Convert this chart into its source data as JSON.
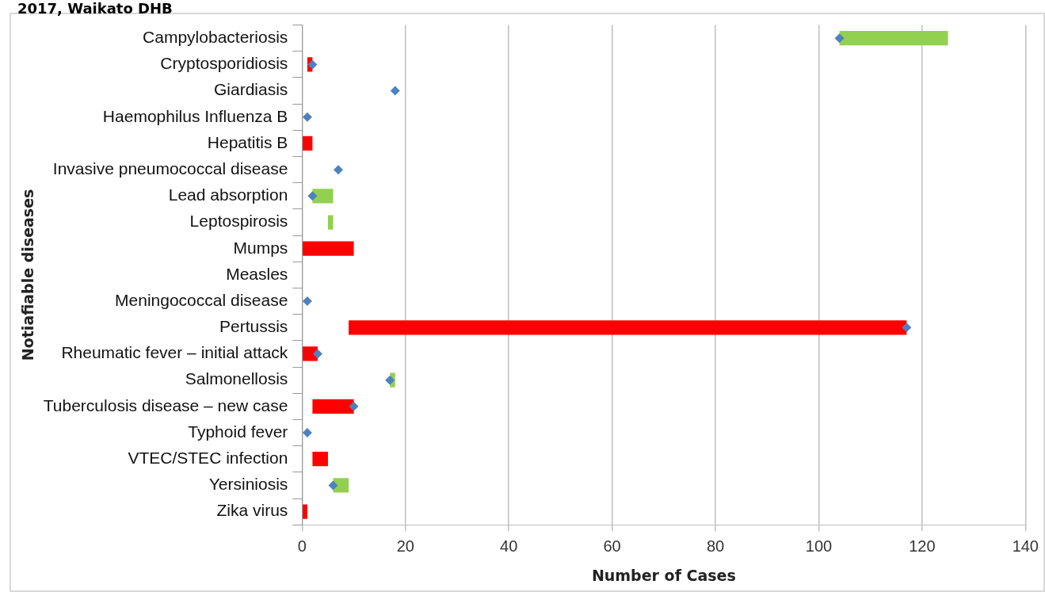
{
  "chart_data": {
    "type": "bar",
    "orientation": "horizontal",
    "title": "2017, Waikato DHB",
    "xlabel": "Number of Cases",
    "ylabel": "Notiafiable diseases",
    "categories": [
      "Campylobacteriosis",
      "Cryptosporidiosis",
      "Giardiasis",
      "Haemophilus Influenza B",
      "Hepatitis B",
      "Invasive pneumococcal disease",
      "Lead absorption",
      "Leptospirosis",
      "Mumps",
      "Measles",
      "Meningococcal disease",
      "Pertussis",
      "Rheumatic fever – initial attack",
      "Salmonellosis",
      "Tuberculosis disease – new case",
      "Typhoid fever",
      "VTEC/STEC infection",
      "Yersiniosis",
      "Zika virus"
    ],
    "series": [
      {
        "type": "bar",
        "base": [
          104,
          1,
          null,
          null,
          0,
          null,
          2,
          5,
          0,
          null,
          null,
          9,
          0,
          17,
          2,
          null,
          2,
          6,
          0
        ],
        "colors": [
          "#92d050",
          "#ff0000",
          null,
          null,
          "#ff0000",
          null,
          "#92d050",
          "#92d050",
          "#ff0000",
          null,
          null,
          "#ff0000",
          "#ff0000",
          "#92d050",
          "#ff0000",
          null,
          "#ff0000",
          "#92d050",
          "#ff0000"
        ],
        "values": [
          21,
          1,
          null,
          null,
          2,
          null,
          4,
          1,
          10,
          null,
          null,
          108,
          3,
          1,
          8,
          null,
          3,
          3,
          1
        ]
      },
      {
        "type": "scatter",
        "color": "#4f81bd",
        "values": [
          104,
          2,
          18,
          1,
          null,
          7,
          2,
          null,
          null,
          null,
          1,
          117,
          3,
          17,
          10,
          1,
          null,
          6,
          null
        ]
      }
    ],
    "marker": "diamond",
    "xlim": [
      0,
      140
    ],
    "xticks": [
      0,
      20,
      40,
      60,
      80,
      100,
      120,
      140
    ],
    "grid": "x",
    "legend": false
  }
}
